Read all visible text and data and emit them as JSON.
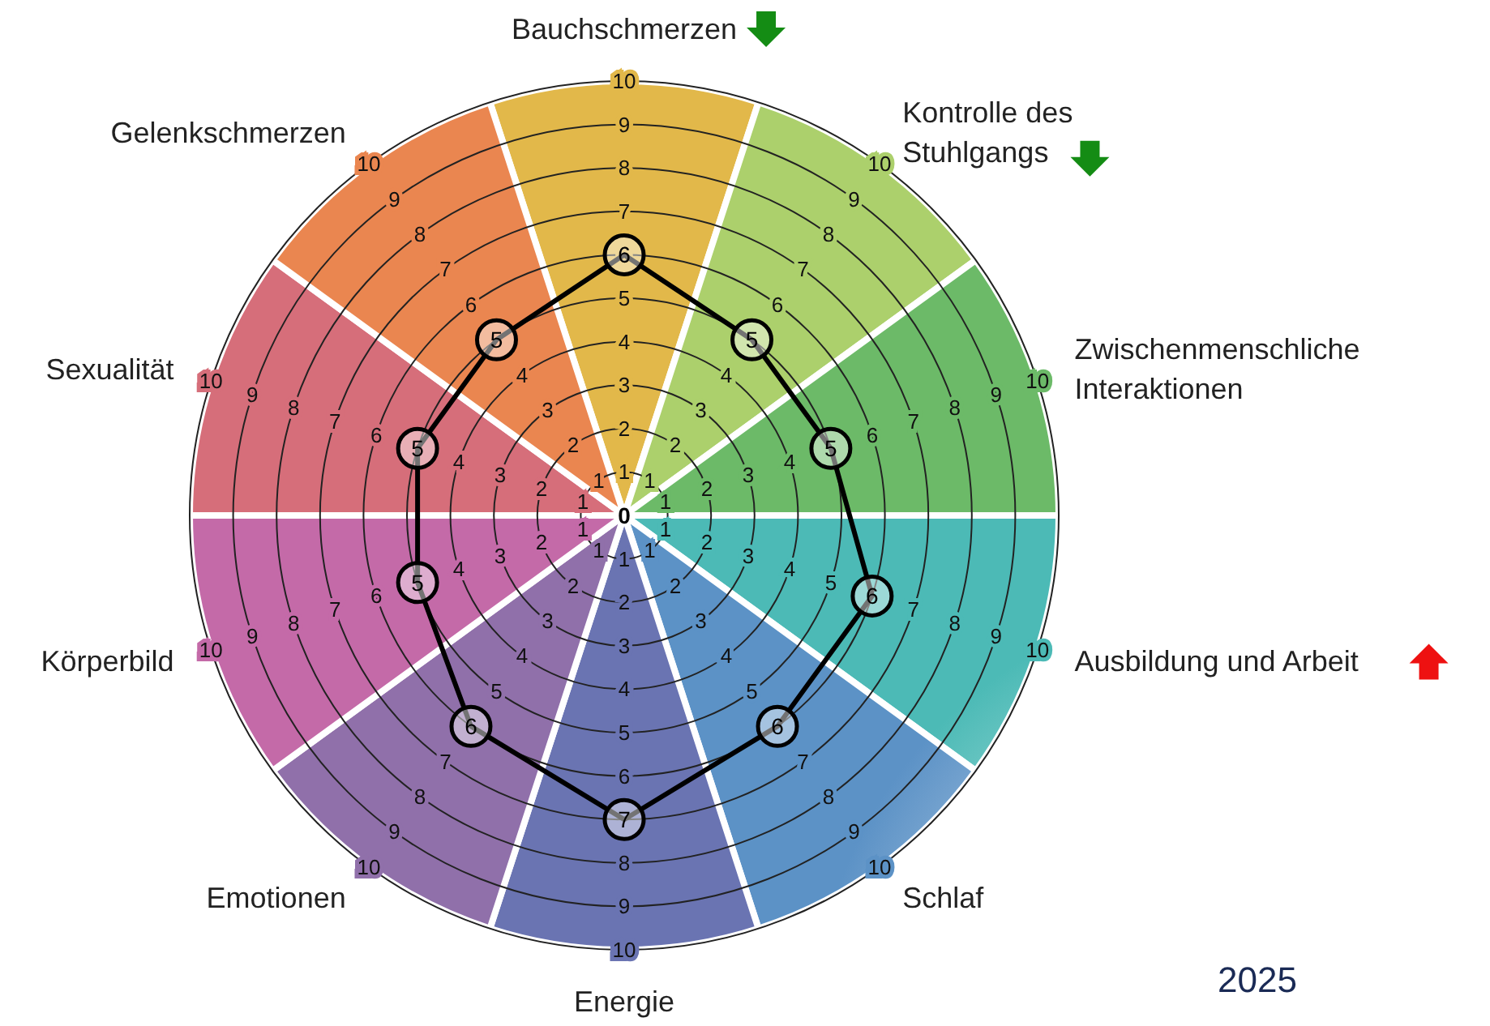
{
  "chart_data": {
    "type": "radar",
    "categories": [
      "Bauchschmerzen",
      "Kontrolle des Stuhlgangs",
      "Zwischenmenschliche Interaktionen",
      "Ausbildung und Arbeit",
      "Schlaf",
      "Energie",
      "Emotionen",
      "Körperbild",
      "Sexualität",
      "Gelenkschmerzen"
    ],
    "colors": [
      "#e2b84a",
      "#acd06c",
      "#6cba68",
      "#4cbab6",
      "#5c92c6",
      "#6a74b2",
      "#9070aa",
      "#c46aa8",
      "#d66e7a",
      "#ea8650"
    ],
    "series": [
      {
        "color": "#000000",
        "values": [
          6,
          5,
          5,
          6,
          6,
          7,
          6,
          5,
          5,
          5
        ]
      }
    ],
    "ylim": [
      0,
      10
    ],
    "yticks": [
      0,
      1,
      2,
      3,
      4,
      5,
      6,
      7,
      8,
      9,
      10
    ],
    "grid": true,
    "marker": "circle",
    "data_labels": true,
    "annotations": [
      "1",
      "2",
      "3",
      "4",
      "6",
      "7",
      "8",
      "9",
      "10",
      "1",
      "2",
      "3",
      "4",
      "6",
      "7",
      "8",
      "9",
      "10",
      "1",
      "2",
      "3",
      "4",
      "5",
      "7",
      "8",
      "9",
      "10",
      "1",
      "2",
      "3",
      "4",
      "5",
      "7",
      "8",
      "9",
      "10",
      "1",
      "2",
      "3",
      "4",
      "5",
      "6",
      "8",
      "9",
      "10",
      "1",
      "2",
      "3",
      "4",
      "5",
      "7",
      "8",
      "9",
      "10",
      "1",
      "2",
      "3",
      "4",
      "6",
      "7",
      "8",
      "9",
      "10",
      "1",
      "2",
      "3",
      "4",
      "6",
      "7",
      "8",
      "9",
      "10",
      "1",
      "2",
      "3",
      "4",
      "6",
      "7",
      "8",
      "9",
      "10",
      "2025"
    ]
  }
}
